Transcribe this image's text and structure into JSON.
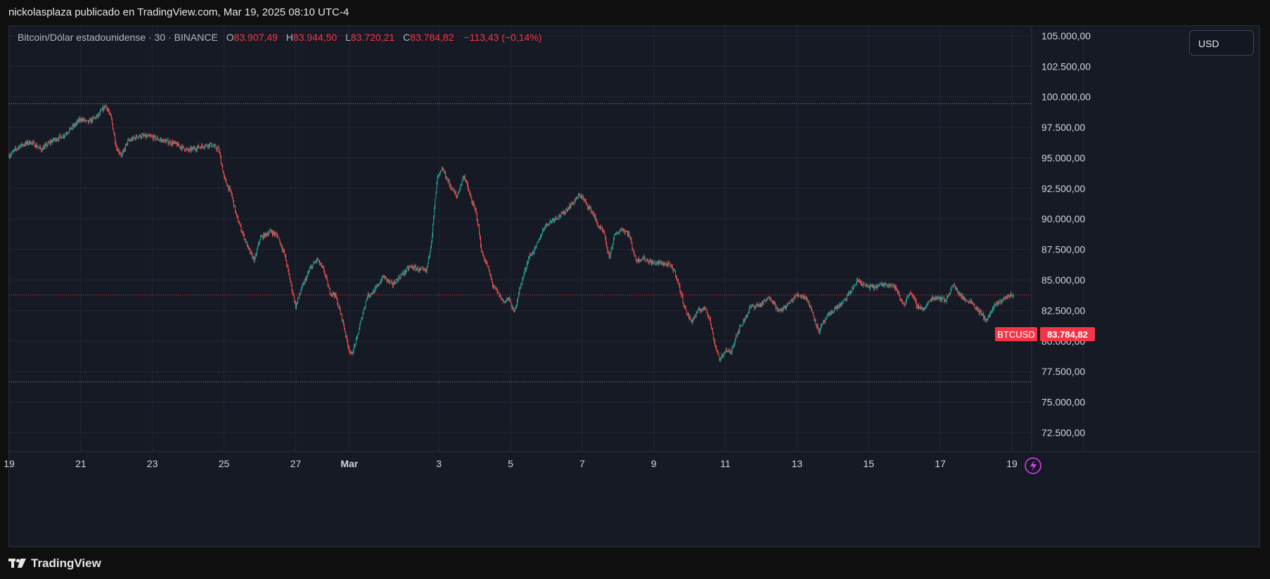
{
  "header": {
    "publisher_line": "nickolasplaza publicado en TradingView.com, Mar 19, 2025 08:10 UTC-4"
  },
  "legend": {
    "symbol": "Bitcoin/Dólar estadounidense · 30 · BINANCE",
    "open_label": "O",
    "open": "83.907,49",
    "high_label": "H",
    "high": "83.944,50",
    "low_label": "L",
    "low": "83.720,21",
    "close_label": "C",
    "close": "83.784,82",
    "change": "−113,43 (−0,14%)"
  },
  "currency_button": "USD",
  "price_tag": {
    "symbol": "BTCUSD",
    "value": "83.784,82"
  },
  "footer": {
    "brand": "TradingView"
  },
  "colors": {
    "up": "#26a69a",
    "down": "#ef5350",
    "tag": "#f23645",
    "grid": "#242733"
  },
  "chart_data": {
    "type": "candlestick",
    "y_ticks": [
      72500,
      75000,
      77500,
      80000,
      82500,
      85000,
      87500,
      90000,
      92500,
      95000,
      97500,
      100000,
      102500,
      105000
    ],
    "y_tick_labels": [
      "72.500,00",
      "75.000,00",
      "77.500,00",
      "80.000,00",
      "82.500,00",
      "85.000,00",
      "87.500,00",
      "90.000,00",
      "92.500,00",
      "95.000,00",
      "97.500,00",
      "100.000,00",
      "102.500,00",
      "105.000,00"
    ],
    "ylim": [
      71000,
      105800
    ],
    "x_ticks": [
      19,
      21,
      23,
      25,
      27,
      28.5,
      31,
      33,
      35,
      37,
      39,
      41,
      43,
      45,
      47,
      49
    ],
    "x_tick_labels": [
      "19",
      "21",
      "23",
      "25",
      "27",
      "Mar",
      "3",
      "5",
      "7",
      "9",
      "11",
      "13",
      "15",
      "17",
      "19",
      ""
    ],
    "xlim": [
      19,
      47.55
    ],
    "ref_lines": [
      99450,
      76650
    ],
    "last_price": 83784.82,
    "closes": [
      [
        19.0,
        95200
      ],
      [
        19.3,
        96000
      ],
      [
        19.6,
        96300
      ],
      [
        19.9,
        95700
      ],
      [
        20.2,
        96400
      ],
      [
        20.5,
        96800
      ],
      [
        20.8,
        97600
      ],
      [
        21.0,
        98200
      ],
      [
        21.2,
        97900
      ],
      [
        21.5,
        98500
      ],
      [
        21.7,
        99350
      ],
      [
        21.85,
        98200
      ],
      [
        22.0,
        95800
      ],
      [
        22.15,
        95200
      ],
      [
        22.3,
        96300
      ],
      [
        22.6,
        96800
      ],
      [
        23.0,
        96700
      ],
      [
        23.3,
        96400
      ],
      [
        23.6,
        96200
      ],
      [
        24.0,
        95600
      ],
      [
        24.3,
        95900
      ],
      [
        24.6,
        96100
      ],
      [
        24.85,
        95700
      ],
      [
        25.0,
        93400
      ],
      [
        25.1,
        92700
      ],
      [
        25.2,
        92100
      ],
      [
        25.35,
        90200
      ],
      [
        25.5,
        89000
      ],
      [
        25.7,
        87400
      ],
      [
        25.85,
        86600
      ],
      [
        26.0,
        88400
      ],
      [
        26.3,
        89000
      ],
      [
        26.5,
        88600
      ],
      [
        26.7,
        87000
      ],
      [
        26.85,
        84900
      ],
      [
        27.0,
        82800
      ],
      [
        27.15,
        84200
      ],
      [
        27.4,
        85900
      ],
      [
        27.6,
        86700
      ],
      [
        27.8,
        85700
      ],
      [
        27.95,
        84000
      ],
      [
        28.1,
        83800
      ],
      [
        28.3,
        81800
      ],
      [
        28.45,
        79800
      ],
      [
        28.55,
        78800
      ],
      [
        28.7,
        80100
      ],
      [
        28.85,
        82000
      ],
      [
        29.0,
        83700
      ],
      [
        29.2,
        84100
      ],
      [
        29.45,
        85300
      ],
      [
        29.7,
        84600
      ],
      [
        29.95,
        85400
      ],
      [
        30.2,
        86100
      ],
      [
        30.5,
        85800
      ],
      [
        30.65,
        85700
      ],
      [
        30.8,
        88400
      ],
      [
        30.95,
        93300
      ],
      [
        31.1,
        94100
      ],
      [
        31.3,
        92800
      ],
      [
        31.5,
        91800
      ],
      [
        31.7,
        93600
      ],
      [
        31.9,
        91600
      ],
      [
        32.05,
        90400
      ],
      [
        32.2,
        87200
      ],
      [
        32.35,
        86200
      ],
      [
        32.5,
        84600
      ],
      [
        32.65,
        83900
      ],
      [
        32.8,
        83200
      ],
      [
        32.95,
        83500
      ],
      [
        33.1,
        82300
      ],
      [
        33.25,
        84200
      ],
      [
        33.5,
        86800
      ],
      [
        33.7,
        87600
      ],
      [
        33.95,
        89400
      ],
      [
        34.2,
        90000
      ],
      [
        34.45,
        90400
      ],
      [
        34.7,
        91200
      ],
      [
        34.95,
        92000
      ],
      [
        35.1,
        91300
      ],
      [
        35.3,
        90500
      ],
      [
        35.45,
        89400
      ],
      [
        35.6,
        88900
      ],
      [
        35.75,
        86800
      ],
      [
        35.9,
        88600
      ],
      [
        36.1,
        89200
      ],
      [
        36.3,
        88800
      ],
      [
        36.5,
        86600
      ],
      [
        36.7,
        86800
      ],
      [
        36.95,
        86400
      ],
      [
        37.2,
        86400
      ],
      [
        37.45,
        86200
      ],
      [
        37.6,
        85600
      ],
      [
        37.75,
        84000
      ],
      [
        37.9,
        82400
      ],
      [
        38.05,
        81600
      ],
      [
        38.25,
        82500
      ],
      [
        38.45,
        82700
      ],
      [
        38.55,
        81900
      ],
      [
        38.7,
        79800
      ],
      [
        38.85,
        78400
      ],
      [
        39.0,
        79300
      ],
      [
        39.15,
        79000
      ],
      [
        39.3,
        80500
      ],
      [
        39.5,
        81600
      ],
      [
        39.7,
        82800
      ],
      [
        40.0,
        83000
      ],
      [
        40.25,
        83600
      ],
      [
        40.5,
        82400
      ],
      [
        40.75,
        83000
      ],
      [
        41.0,
        83800
      ],
      [
        41.25,
        83600
      ],
      [
        41.45,
        82200
      ],
      [
        41.6,
        80800
      ],
      [
        41.8,
        81800
      ],
      [
        42.0,
        82500
      ],
      [
        42.3,
        83200
      ],
      [
        42.55,
        84300
      ],
      [
        42.7,
        85000
      ],
      [
        42.9,
        84500
      ],
      [
        43.15,
        84400
      ],
      [
        43.35,
        84600
      ],
      [
        43.55,
        84700
      ],
      [
        43.75,
        84400
      ],
      [
        43.9,
        83300
      ],
      [
        44.0,
        83000
      ],
      [
        44.15,
        84100
      ],
      [
        44.35,
        82900
      ],
      [
        44.55,
        82600
      ],
      [
        44.75,
        83500
      ],
      [
        44.95,
        83600
      ],
      [
        45.15,
        83300
      ],
      [
        45.35,
        84600
      ],
      [
        45.5,
        84000
      ],
      [
        45.7,
        83300
      ],
      [
        45.85,
        83300
      ],
      [
        46.0,
        82700
      ],
      [
        46.15,
        82200
      ],
      [
        46.3,
        81700
      ],
      [
        46.45,
        82600
      ],
      [
        46.6,
        83100
      ],
      [
        46.75,
        83400
      ],
      [
        46.9,
        83700
      ],
      [
        47.05,
        83784
      ]
    ]
  }
}
